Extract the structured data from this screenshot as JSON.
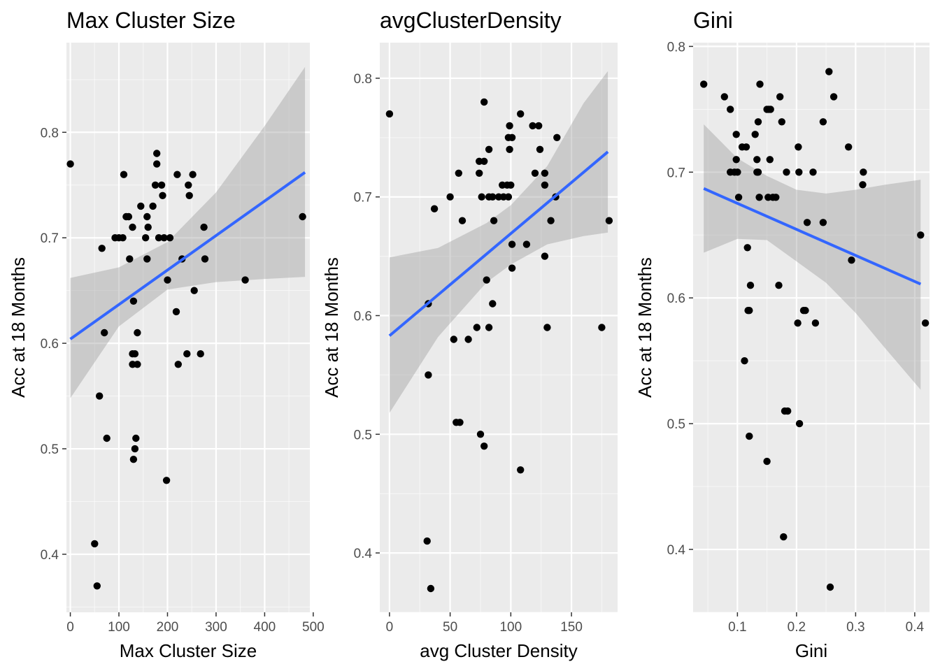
{
  "colors": {
    "panel": "#ebebeb",
    "grid_major": "#ffffff",
    "point": "#000000",
    "fit_line": "#3366ff",
    "ribbon": "#999999"
  },
  "chart_data": [
    {
      "type": "scatter",
      "title": "Max Cluster Size",
      "xlabel": "Max Cluster Size",
      "ylabel": "Acc at 18 Months",
      "xlim": [
        -8,
        493
      ],
      "ylim": [
        0.345,
        0.885
      ],
      "xticks": [
        0,
        100,
        200,
        300,
        400,
        500
      ],
      "yticks": [
        0.4,
        0.5,
        0.6,
        0.7,
        0.8
      ],
      "grid": true,
      "fit": {
        "x0": 0,
        "y0": 0.604,
        "x1": 483,
        "y1": 0.762
      },
      "ribbon": {
        "x": [
          0,
          100,
          200,
          300,
          400,
          483
        ],
        "lower": [
          0.548,
          0.616,
          0.651,
          0.658,
          0.661,
          0.663
        ],
        "upper": [
          0.662,
          0.672,
          0.696,
          0.743,
          0.806,
          0.862
        ]
      },
      "points": [
        [
          0,
          0.77
        ],
        [
          65,
          0.69
        ],
        [
          70,
          0.61
        ],
        [
          60,
          0.55
        ],
        [
          75,
          0.51
        ],
        [
          50,
          0.41
        ],
        [
          55,
          0.37
        ],
        [
          92,
          0.7
        ],
        [
          100,
          0.7
        ],
        [
          108,
          0.7
        ],
        [
          110,
          0.76
        ],
        [
          115,
          0.72
        ],
        [
          120,
          0.72
        ],
        [
          122,
          0.68
        ],
        [
          128,
          0.71
        ],
        [
          130,
          0.64
        ],
        [
          128,
          0.59
        ],
        [
          133,
          0.59
        ],
        [
          128,
          0.58
        ],
        [
          138,
          0.58
        ],
        [
          135,
          0.51
        ],
        [
          133,
          0.5
        ],
        [
          130,
          0.49
        ],
        [
          138,
          0.61
        ],
        [
          145,
          0.73
        ],
        [
          155,
          0.7
        ],
        [
          158,
          0.68
        ],
        [
          158,
          0.72
        ],
        [
          160,
          0.71
        ],
        [
          170,
          0.73
        ],
        [
          175,
          0.75
        ],
        [
          178,
          0.77
        ],
        [
          178,
          0.78
        ],
        [
          188,
          0.75
        ],
        [
          182,
          0.7
        ],
        [
          190,
          0.74
        ],
        [
          193,
          0.7
        ],
        [
          205,
          0.7
        ],
        [
          200,
          0.66
        ],
        [
          198,
          0.47
        ],
        [
          218,
          0.63
        ],
        [
          220,
          0.76
        ],
        [
          222,
          0.58
        ],
        [
          230,
          0.68
        ],
        [
          240,
          0.59
        ],
        [
          243,
          0.75
        ],
        [
          245,
          0.74
        ],
        [
          252,
          0.76
        ],
        [
          255,
          0.65
        ],
        [
          268,
          0.59
        ],
        [
          275,
          0.71
        ],
        [
          277,
          0.68
        ],
        [
          360,
          0.66
        ],
        [
          478,
          0.72
        ]
      ]
    },
    {
      "type": "scatter",
      "title": "avgClusterDensity",
      "xlabel": "avg Cluster Density",
      "ylabel": "Acc at 18 Months",
      "xlim": [
        -8,
        188
      ],
      "ylim": [
        0.35,
        0.83
      ],
      "xticks": [
        0,
        50,
        100,
        150
      ],
      "yticks": [
        0.4,
        0.5,
        0.6,
        0.7,
        0.8
      ],
      "grid": true,
      "fit": {
        "x0": 0,
        "y0": 0.583,
        "x1": 180,
        "y1": 0.738
      },
      "ribbon": {
        "x": [
          0,
          40,
          80,
          100,
          130,
          160,
          180
        ],
        "lower": [
          0.518,
          0.582,
          0.628,
          0.643,
          0.66,
          0.667,
          0.67
        ],
        "upper": [
          0.649,
          0.657,
          0.678,
          0.693,
          0.726,
          0.779,
          0.806
        ]
      },
      "points": [
        [
          0,
          0.77
        ],
        [
          32,
          0.61
        ],
        [
          32,
          0.55
        ],
        [
          31,
          0.41
        ],
        [
          34,
          0.37
        ],
        [
          37,
          0.69
        ],
        [
          50,
          0.7
        ],
        [
          53,
          0.58
        ],
        [
          55,
          0.51
        ],
        [
          57,
          0.72
        ],
        [
          58,
          0.51
        ],
        [
          60,
          0.68
        ],
        [
          65,
          0.58
        ],
        [
          72,
          0.59
        ],
        [
          74,
          0.73
        ],
        [
          74,
          0.72
        ],
        [
          75,
          0.5
        ],
        [
          76,
          0.7
        ],
        [
          78,
          0.49
        ],
        [
          78,
          0.73
        ],
        [
          78,
          0.78
        ],
        [
          80,
          0.63
        ],
        [
          82,
          0.74
        ],
        [
          82,
          0.7
        ],
        [
          82,
          0.59
        ],
        [
          85,
          0.61
        ],
        [
          85,
          0.7
        ],
        [
          86,
          0.68
        ],
        [
          90,
          0.7
        ],
        [
          93,
          0.71
        ],
        [
          94,
          0.7
        ],
        [
          97,
          0.71
        ],
        [
          98,
          0.7
        ],
        [
          98,
          0.75
        ],
        [
          99,
          0.76
        ],
        [
          99,
          0.74
        ],
        [
          100,
          0.71
        ],
        [
          101,
          0.75
        ],
        [
          101,
          0.66
        ],
        [
          101,
          0.64
        ],
        [
          108,
          0.77
        ],
        [
          108,
          0.47
        ],
        [
          113,
          0.66
        ],
        [
          118,
          0.76
        ],
        [
          120,
          0.72
        ],
        [
          123,
          0.76
        ],
        [
          124,
          0.74
        ],
        [
          128,
          0.72
        ],
        [
          128,
          0.71
        ],
        [
          128,
          0.65
        ],
        [
          130,
          0.59
        ],
        [
          133,
          0.68
        ],
        [
          137,
          0.7
        ],
        [
          138,
          0.75
        ],
        [
          175,
          0.59
        ],
        [
          181,
          0.68
        ]
      ]
    },
    {
      "type": "scatter",
      "title": "Gini",
      "xlabel": "Gini",
      "ylabel": "Acc at 18 Months",
      "xlim": [
        0.025,
        0.425
      ],
      "ylim": [
        0.35,
        0.803
      ],
      "xticks": [
        0.1,
        0.2,
        0.3,
        0.4
      ],
      "yticks": [
        0.4,
        0.5,
        0.6,
        0.7,
        0.8
      ],
      "grid": true,
      "fit": {
        "x0": 0.043,
        "y0": 0.687,
        "x1": 0.41,
        "y1": 0.611
      },
      "ribbon": {
        "x": [
          0.043,
          0.1,
          0.15,
          0.2,
          0.25,
          0.3,
          0.35,
          0.41
        ],
        "lower": [
          0.636,
          0.647,
          0.646,
          0.629,
          0.612,
          0.588,
          0.56,
          0.527
        ],
        "upper": [
          0.738,
          0.711,
          0.697,
          0.686,
          0.683,
          0.686,
          0.69,
          0.694
        ]
      },
      "points": [
        [
          0.043,
          0.77
        ],
        [
          0.078,
          0.76
        ],
        [
          0.088,
          0.75
        ],
        [
          0.088,
          0.7
        ],
        [
          0.095,
          0.7
        ],
        [
          0.098,
          0.73
        ],
        [
          0.098,
          0.71
        ],
        [
          0.1,
          0.7
        ],
        [
          0.102,
          0.68
        ],
        [
          0.108,
          0.72
        ],
        [
          0.112,
          0.55
        ],
        [
          0.115,
          0.72
        ],
        [
          0.117,
          0.64
        ],
        [
          0.118,
          0.59
        ],
        [
          0.12,
          0.59
        ],
        [
          0.12,
          0.49
        ],
        [
          0.122,
          0.61
        ],
        [
          0.13,
          0.73
        ],
        [
          0.133,
          0.71
        ],
        [
          0.133,
          0.7
        ],
        [
          0.135,
          0.74
        ],
        [
          0.135,
          0.7
        ],
        [
          0.137,
          0.68
        ],
        [
          0.138,
          0.77
        ],
        [
          0.15,
          0.47
        ],
        [
          0.15,
          0.75
        ],
        [
          0.152,
          0.68
        ],
        [
          0.153,
          0.75
        ],
        [
          0.155,
          0.71
        ],
        [
          0.156,
          0.75
        ],
        [
          0.16,
          0.68
        ],
        [
          0.165,
          0.68
        ],
        [
          0.17,
          0.61
        ],
        [
          0.172,
          0.76
        ],
        [
          0.175,
          0.74
        ],
        [
          0.178,
          0.41
        ],
        [
          0.18,
          0.51
        ],
        [
          0.183,
          0.7
        ],
        [
          0.185,
          0.51
        ],
        [
          0.202,
          0.58
        ],
        [
          0.203,
          0.72
        ],
        [
          0.204,
          0.7
        ],
        [
          0.205,
          0.5
        ],
        [
          0.212,
          0.59
        ],
        [
          0.215,
          0.59
        ],
        [
          0.218,
          0.66
        ],
        [
          0.228,
          0.7
        ],
        [
          0.232,
          0.58
        ],
        [
          0.245,
          0.74
        ],
        [
          0.245,
          0.66
        ],
        [
          0.255,
          0.78
        ],
        [
          0.257,
          0.37
        ],
        [
          0.263,
          0.76
        ],
        [
          0.288,
          0.72
        ],
        [
          0.293,
          0.63
        ],
        [
          0.312,
          0.69
        ],
        [
          0.313,
          0.7
        ],
        [
          0.41,
          0.65
        ],
        [
          0.418,
          0.58
        ]
      ]
    }
  ]
}
